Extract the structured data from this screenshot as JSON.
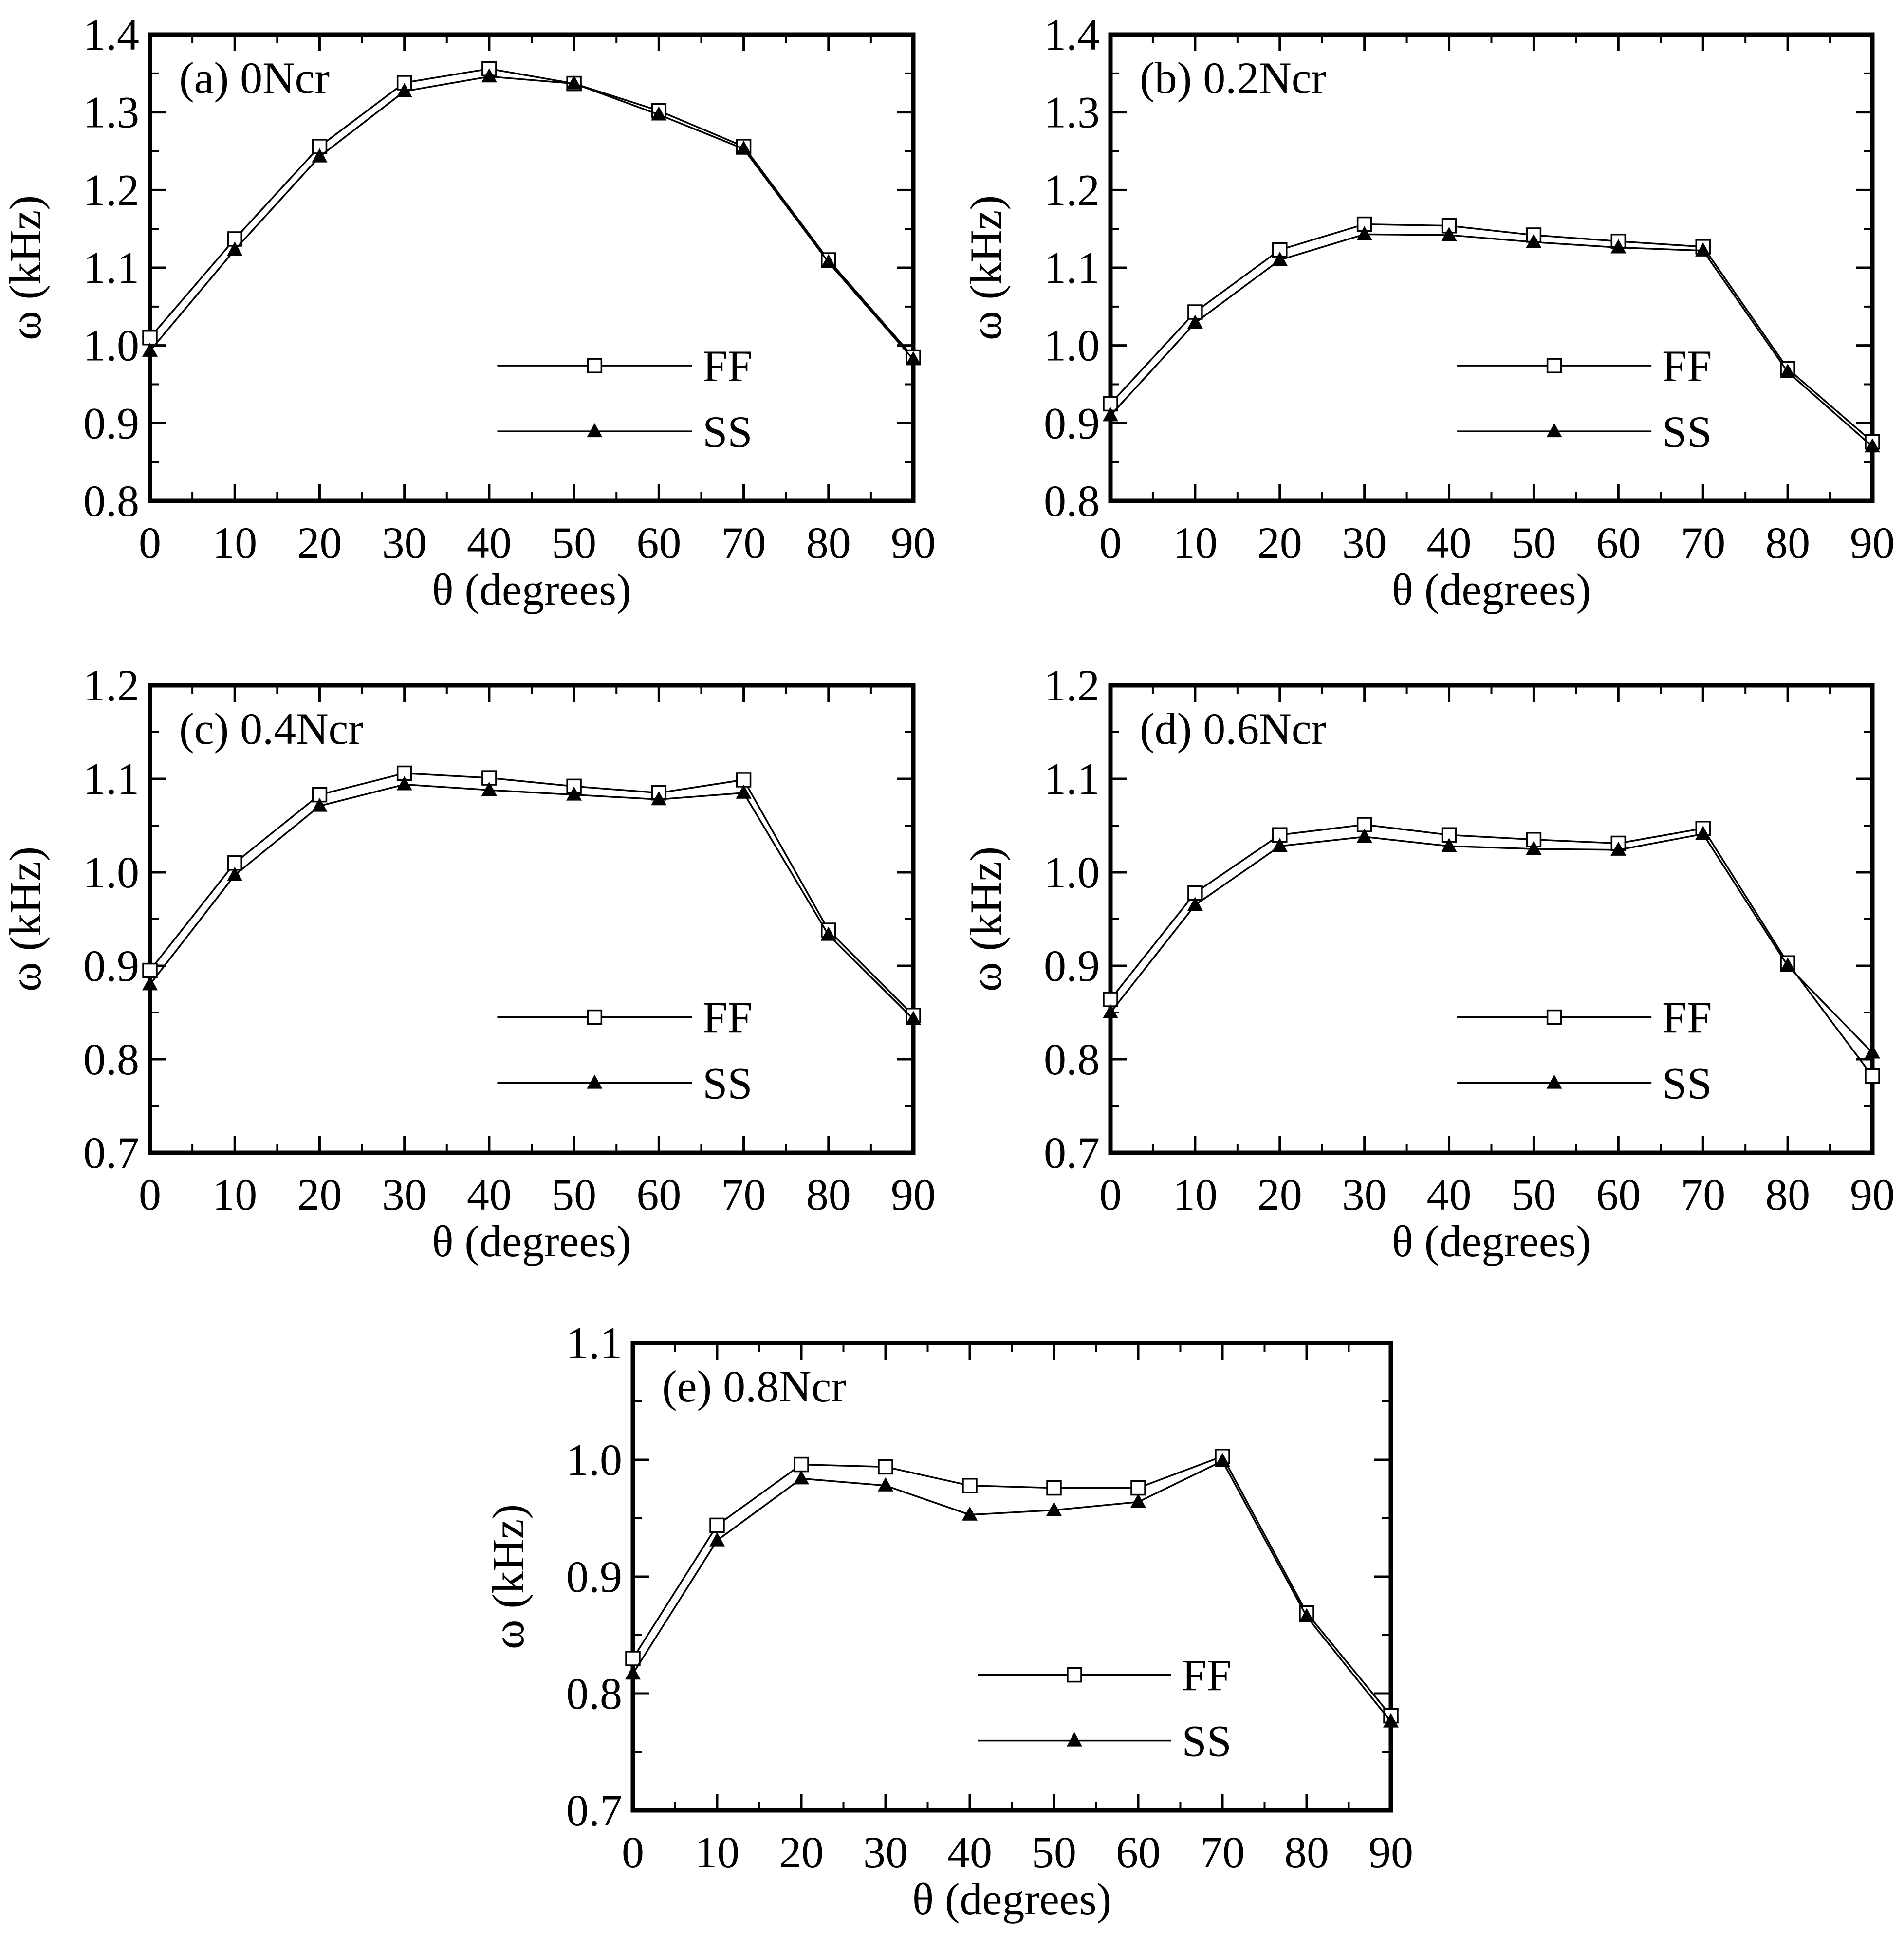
{
  "chart_data": [
    {
      "type": "line",
      "panel_label": "(a) 0Ncr",
      "xlabel": "θ (degrees)",
      "ylabel": "ω (kHz)",
      "x": [
        0,
        10,
        20,
        30,
        40,
        50,
        60,
        70,
        80,
        90
      ],
      "xlim": [
        0,
        90
      ],
      "ylim": [
        0.8,
        1.4
      ],
      "x_ticks": [
        "0",
        "10",
        "20",
        "30",
        "40",
        "50",
        "60",
        "70",
        "80",
        "90"
      ],
      "y_ticks": [
        "0.8",
        "0.9",
        "1.0",
        "1.1",
        "1.2",
        "1.3",
        "1.4"
      ],
      "legend": "lower-right",
      "series": [
        {
          "name": "FF",
          "marker": "open-square",
          "values": [
            1.01,
            1.137,
            1.256,
            1.338,
            1.356,
            1.337,
            1.302,
            1.256,
            1.11,
            0.985
          ]
        },
        {
          "name": "SS",
          "marker": "filled-triangle",
          "values": [
            0.993,
            1.123,
            1.243,
            1.327,
            1.346,
            1.337,
            1.297,
            1.253,
            1.107,
            0.982
          ]
        }
      ]
    },
    {
      "type": "line",
      "panel_label": "(b) 0.2Ncr",
      "xlabel": "θ (degrees)",
      "ylabel": "ω (kHz)",
      "x": [
        0,
        10,
        20,
        30,
        40,
        50,
        60,
        70,
        80,
        90
      ],
      "xlim": [
        0,
        90
      ],
      "ylim": [
        0.8,
        1.4
      ],
      "x_ticks": [
        "0",
        "10",
        "20",
        "30",
        "40",
        "50",
        "60",
        "70",
        "80",
        "90"
      ],
      "y_ticks": [
        "0.8",
        "0.9",
        "1.0",
        "1.1",
        "1.2",
        "1.3",
        "1.4"
      ],
      "legend": "lower-right",
      "series": [
        {
          "name": "FF",
          "marker": "open-square",
          "values": [
            0.925,
            1.043,
            1.123,
            1.156,
            1.154,
            1.142,
            1.134,
            1.127,
            0.97,
            0.876
          ]
        },
        {
          "name": "SS",
          "marker": "filled-triangle",
          "values": [
            0.91,
            1.029,
            1.11,
            1.143,
            1.142,
            1.133,
            1.126,
            1.122,
            0.966,
            0.87
          ]
        }
      ]
    },
    {
      "type": "line",
      "panel_label": "(c) 0.4Ncr",
      "xlabel": "θ (degrees)",
      "ylabel": "ω (kHz)",
      "x": [
        0,
        10,
        20,
        30,
        40,
        50,
        60,
        70,
        80,
        90
      ],
      "xlim": [
        0,
        90
      ],
      "ylim": [
        0.7,
        1.2
      ],
      "x_ticks": [
        "0",
        "10",
        "20",
        "30",
        "40",
        "50",
        "60",
        "70",
        "80",
        "90"
      ],
      "y_ticks": [
        "0.7",
        "0.8",
        "0.9",
        "1.0",
        "1.1",
        "1.2"
      ],
      "legend": "lower-right",
      "series": [
        {
          "name": "FF",
          "marker": "open-square",
          "values": [
            0.895,
            1.01,
            1.083,
            1.106,
            1.101,
            1.092,
            1.085,
            1.099,
            0.938,
            0.847
          ]
        },
        {
          "name": "SS",
          "marker": "filled-triangle",
          "values": [
            0.88,
            0.997,
            1.071,
            1.094,
            1.088,
            1.083,
            1.078,
            1.085,
            0.933,
            0.843
          ]
        }
      ]
    },
    {
      "type": "line",
      "panel_label": "(d) 0.6Ncr",
      "xlabel": "θ (degrees)",
      "ylabel": "ω (kHz)",
      "x": [
        0,
        10,
        20,
        30,
        40,
        50,
        60,
        70,
        80,
        90
      ],
      "xlim": [
        0,
        90
      ],
      "ylim": [
        0.7,
        1.2
      ],
      "x_ticks": [
        "0",
        "10",
        "20",
        "30",
        "40",
        "50",
        "60",
        "70",
        "80",
        "90"
      ],
      "y_ticks": [
        "0.7",
        "0.8",
        "0.9",
        "1.0",
        "1.1",
        "1.2"
      ],
      "legend": "lower-right",
      "series": [
        {
          "name": "FF",
          "marker": "open-square",
          "values": [
            0.864,
            0.978,
            1.04,
            1.051,
            1.04,
            1.035,
            1.031,
            1.047,
            0.903,
            0.782
          ]
        },
        {
          "name": "SS",
          "marker": "filled-triangle",
          "values": [
            0.85,
            0.965,
            1.028,
            1.038,
            1.028,
            1.025,
            1.024,
            1.041,
            0.9,
            0.807
          ]
        }
      ]
    },
    {
      "type": "line",
      "panel_label": "(e) 0.8Ncr",
      "xlabel": "θ (degrees)",
      "ylabel": "ω (kHz)",
      "x": [
        0,
        10,
        20,
        30,
        40,
        50,
        60,
        70,
        80,
        90
      ],
      "xlim": [
        0,
        90
      ],
      "ylim": [
        0.7,
        1.1
      ],
      "x_ticks": [
        "0",
        "10",
        "20",
        "30",
        "40",
        "50",
        "60",
        "70",
        "80",
        "90"
      ],
      "y_ticks": [
        "0.7",
        "0.8",
        "0.9",
        "1.0",
        "1.1"
      ],
      "legend": "lower-right",
      "series": [
        {
          "name": "FF",
          "marker": "open-square",
          "values": [
            0.83,
            0.944,
            0.996,
            0.994,
            0.978,
            0.976,
            0.976,
            1.003,
            0.869,
            0.781
          ]
        },
        {
          "name": "SS",
          "marker": "filled-triangle",
          "values": [
            0.817,
            0.931,
            0.984,
            0.978,
            0.953,
            0.957,
            0.964,
            0.999,
            0.866,
            0.776
          ]
        }
      ]
    }
  ]
}
